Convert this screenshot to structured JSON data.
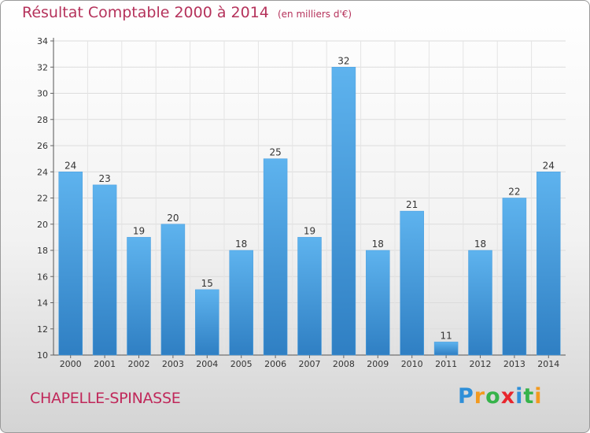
{
  "title": "Résultat Comptable 2000 à 2014",
  "subtitle": "(en milliers d'€)",
  "commune": "CHAPELLE-SPINASSE",
  "logo": {
    "letters": [
      "P",
      "r",
      "o",
      "x",
      "i",
      "t",
      "i"
    ],
    "colors": [
      "#2f8fd8",
      "#f29a1f",
      "#36b34a",
      "#e8262d",
      "#2f8fd8",
      "#36b34a",
      "#f29a1f"
    ]
  },
  "colors": {
    "bar_top": "#5eb3ee",
    "bar_bottom": "#2f7fc3",
    "title": "#b5325b"
  },
  "chart_data": {
    "type": "bar",
    "title": "Résultat Comptable 2000 à 2014",
    "ylabel": "en milliers d'€",
    "xlabel": "",
    "categories": [
      "2000",
      "2001",
      "2002",
      "2003",
      "2004",
      "2005",
      "2006",
      "2007",
      "2008",
      "2009",
      "2010",
      "2011",
      "2012",
      "2013",
      "2014"
    ],
    "values": [
      24,
      23,
      19,
      20,
      15,
      18,
      25,
      19,
      32,
      18,
      21,
      11,
      18,
      22,
      24
    ],
    "ylim": [
      10,
      34
    ],
    "yticks": [
      10,
      12,
      14,
      16,
      18,
      20,
      22,
      24,
      26,
      28,
      30,
      32,
      34
    ],
    "grid": true
  }
}
